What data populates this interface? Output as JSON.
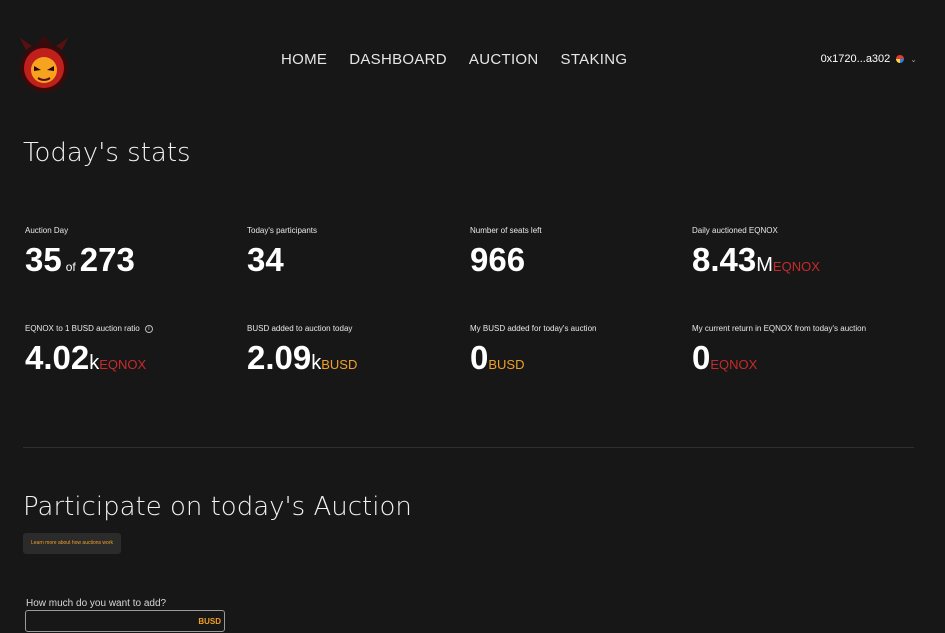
{
  "nav": {
    "items": [
      "HOME",
      "DASHBOARD",
      "AUCTION",
      "STAKING"
    ]
  },
  "wallet": {
    "address": "0x1720...a302"
  },
  "stats": {
    "title": "Today's stats",
    "auction_day": {
      "label": "Auction Day",
      "value": "35",
      "of": "of",
      "total": "273"
    },
    "participants": {
      "label": "Today's participants",
      "value": "34"
    },
    "seats_left": {
      "label": "Number of seats left",
      "value": "966"
    },
    "daily_auctioned": {
      "label": "Daily auctioned EQNOX",
      "value": "8.43",
      "mult": "M",
      "unit": "EQNOX"
    },
    "ratio": {
      "label": "EQNOX to 1 BUSD auction ratio",
      "value": "4.02",
      "mult": "k",
      "unit": "EQNOX"
    },
    "busd_added": {
      "label": "BUSD added to auction today",
      "value": "2.09",
      "mult": "k",
      "unit": "BUSD"
    },
    "my_busd": {
      "label": "My BUSD added for today's auction",
      "value": "0",
      "unit": "BUSD"
    },
    "my_return": {
      "label": "My current return in EQNOX from today's auction",
      "value": "0",
      "unit": "EQNOX"
    }
  },
  "participate": {
    "title": "Participate on today's Auction",
    "learn_more": "Learn more about how auctions work",
    "input_label": "How much do you want to add?",
    "input_value": "",
    "input_suffix": "BUSD"
  },
  "colors": {
    "background": "#181717",
    "accent_red": "#c62b2b",
    "accent_orange": "#f0a028"
  }
}
